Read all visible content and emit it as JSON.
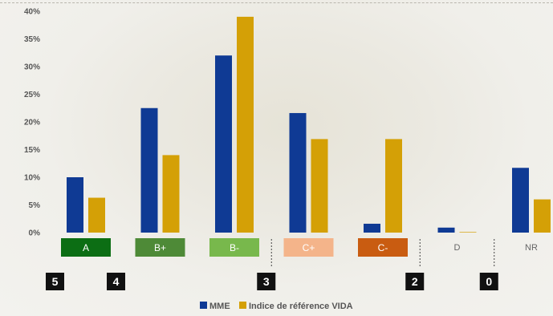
{
  "chart_data": {
    "type": "bar",
    "categories": [
      "A",
      "B+",
      "B-",
      "C+",
      "C-",
      "D",
      "NR"
    ],
    "series": [
      {
        "name": "MME",
        "values": [
          10.0,
          22.5,
          32.0,
          21.6,
          1.6,
          0.9,
          11.7
        ],
        "color": "#0f3a94"
      },
      {
        "name": "Indice de référence VIDA",
        "values": [
          6.3,
          14.0,
          39.0,
          16.9,
          16.9,
          0.1,
          6.0
        ],
        "color": "#d4a006"
      }
    ],
    "category_colors": [
      "#0c6e14",
      "#4e8a37",
      "#78b84c",
      "#f4b48a",
      "#c95c11",
      null,
      null
    ],
    "ylim": [
      0,
      40
    ],
    "yticks": [
      "0%",
      "5%",
      "10%",
      "15%",
      "20%",
      "25%",
      "30%",
      "35%",
      "40%"
    ],
    "score_markers": [
      {
        "label": "5",
        "after_category": -1
      },
      {
        "label": "4",
        "after_category": 0
      },
      {
        "label": "3",
        "after_category": 2
      },
      {
        "label": "2",
        "after_category": 4
      },
      {
        "label": "0",
        "after_category": 5
      }
    ],
    "legend": {
      "position": "bottom",
      "items": [
        "MME",
        "Indice de référence VIDA"
      ]
    },
    "grid": false
  }
}
